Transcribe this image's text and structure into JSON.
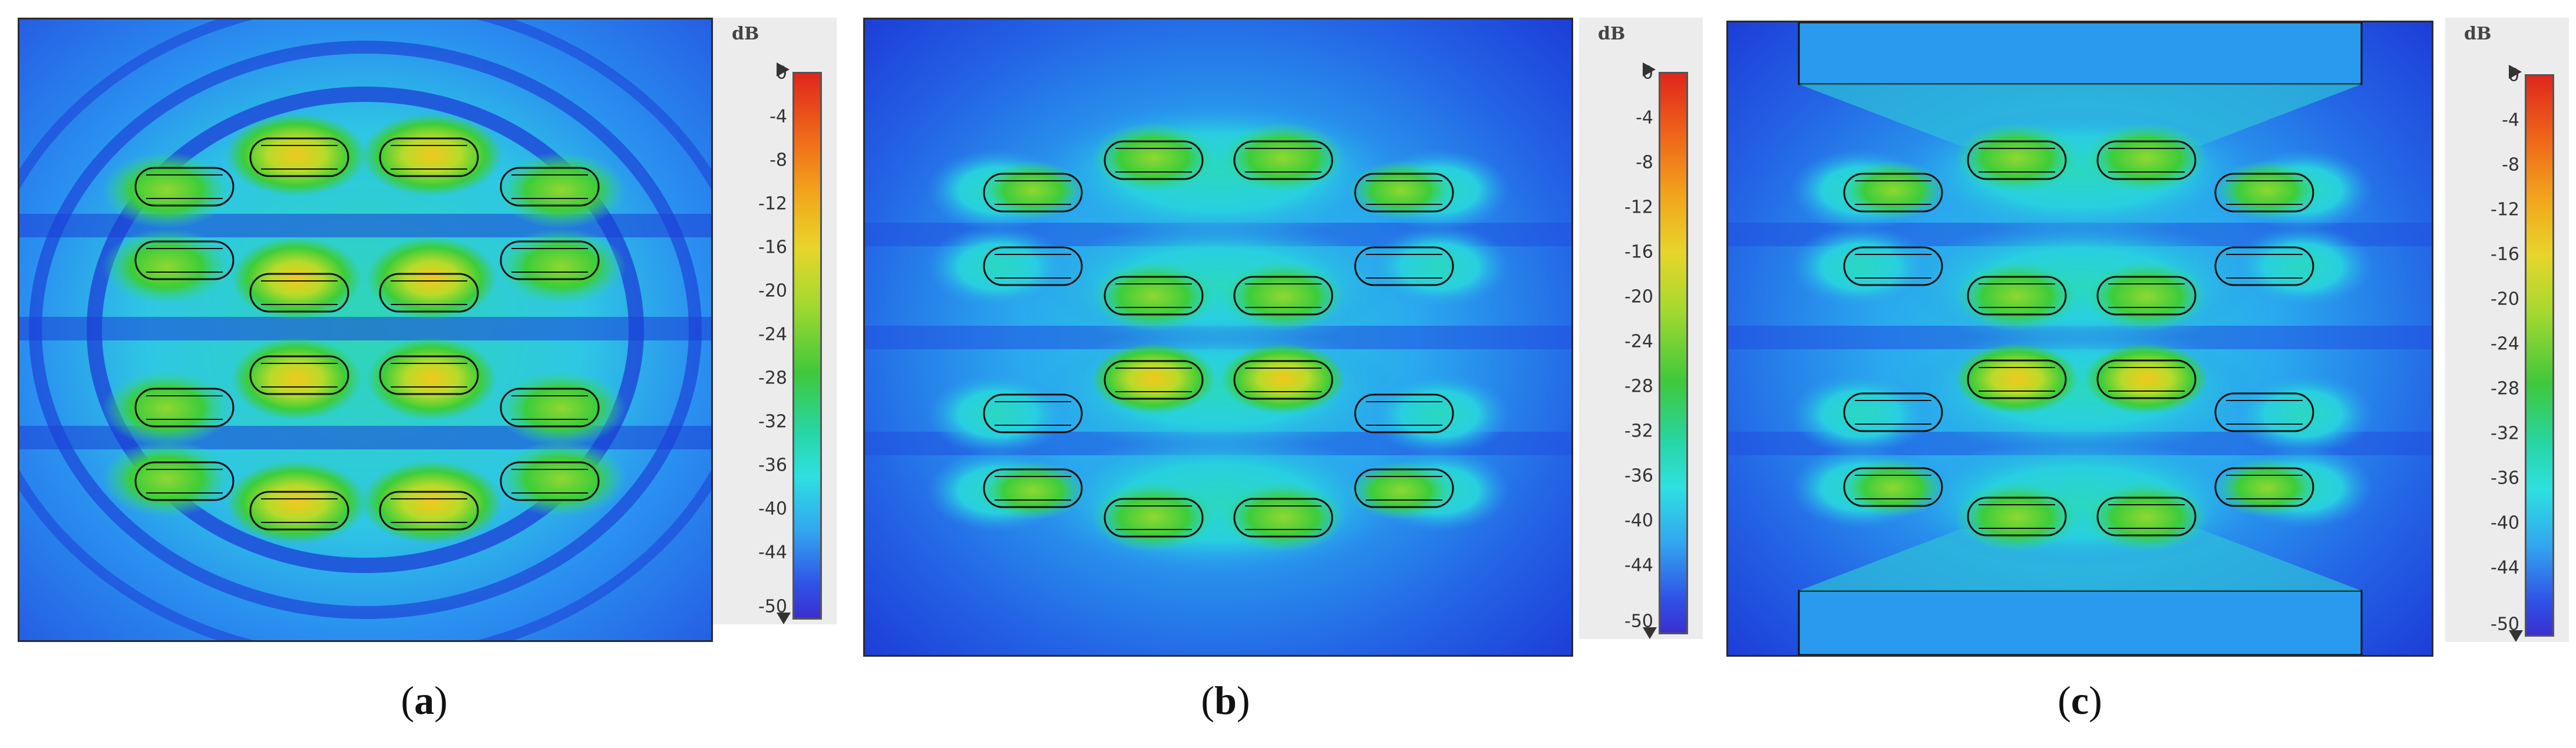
{
  "legend": {
    "unit": "dB",
    "ticks": [
      "0",
      "-4",
      "-8",
      "-12",
      "-16",
      "-20",
      "-24",
      "-28",
      "-32",
      "-36",
      "-40",
      "-44",
      "-50"
    ]
  },
  "panels": [
    {
      "label": "a",
      "caption_open": "(",
      "caption_close": ")"
    },
    {
      "label": "b",
      "caption_open": "(",
      "caption_close": ")"
    },
    {
      "label": "c",
      "caption_open": "(",
      "caption_close": ")"
    }
  ]
}
